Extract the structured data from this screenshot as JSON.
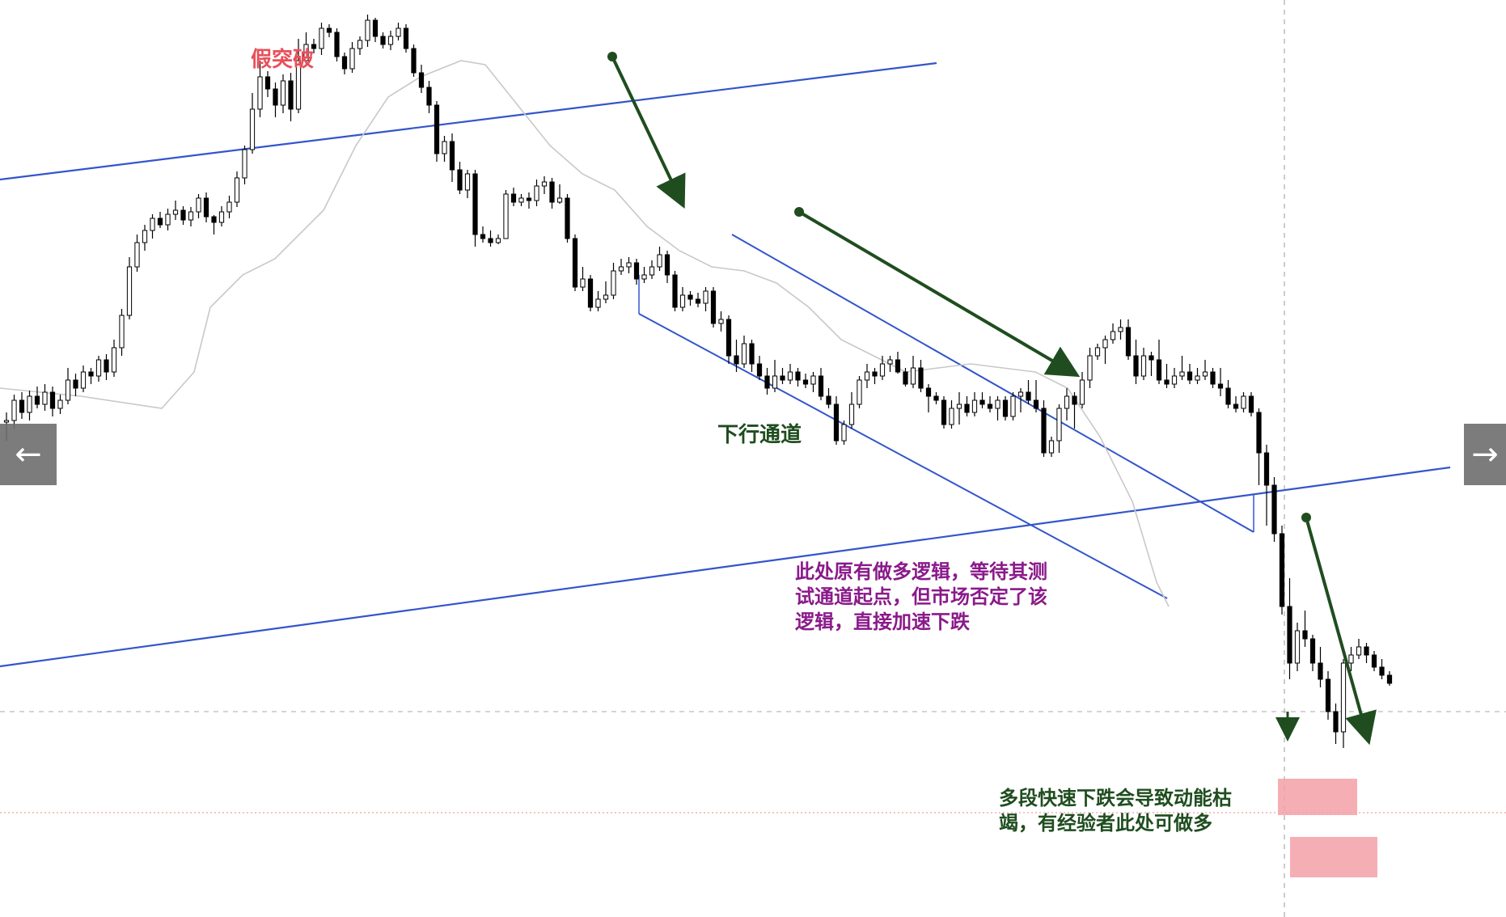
{
  "chart_data": {
    "type": "candlestick",
    "title": "",
    "xlabel": "",
    "ylabel": "",
    "grid": false,
    "colors": {
      "candle": "#000000",
      "moving_average": "#c8c8c8",
      "channel_line": "#3355cc",
      "arrow": "#1f4d1f",
      "highlight_zone": "#f4a0a8",
      "false_breakout_label": "#e8505b",
      "channel_label": "#1f4d1f",
      "logic_note": "#8a1a8a",
      "exhaustion_note": "#1f4d1f"
    },
    "candles": [
      [
        520,
        520,
        545,
        510
      ],
      [
        520,
        495,
        530,
        488
      ],
      [
        495,
        510,
        518,
        485
      ],
      [
        510,
        490,
        520,
        483
      ],
      [
        490,
        500,
        505,
        478
      ],
      [
        500,
        485,
        508,
        475
      ],
      [
        485,
        505,
        515,
        478
      ],
      [
        505,
        495,
        512,
        488
      ],
      [
        495,
        470,
        500,
        455
      ],
      [
        470,
        480,
        490,
        462
      ],
      [
        480,
        460,
        485,
        452
      ],
      [
        460,
        465,
        475,
        455
      ],
      [
        465,
        445,
        472,
        440
      ],
      [
        445,
        460,
        470,
        438
      ],
      [
        460,
        430,
        466,
        420
      ],
      [
        430,
        390,
        440,
        382
      ],
      [
        390,
        330,
        395,
        318
      ],
      [
        330,
        300,
        336,
        290
      ],
      [
        300,
        285,
        310,
        278
      ],
      [
        285,
        270,
        295,
        265
      ],
      [
        270,
        278,
        282,
        262
      ],
      [
        278,
        265,
        285,
        258
      ],
      [
        265,
        260,
        272,
        248
      ],
      [
        260,
        272,
        278,
        255
      ],
      [
        272,
        262,
        280,
        256
      ],
      [
        262,
        245,
        270,
        240
      ],
      [
        245,
        268,
        275,
        238
      ],
      [
        268,
        275,
        290,
        266
      ],
      [
        275,
        262,
        280,
        255
      ],
      [
        262,
        250,
        270,
        242
      ],
      [
        250,
        220,
        256,
        212
      ],
      [
        220,
        185,
        228,
        180
      ],
      [
        185,
        135,
        190,
        115
      ],
      [
        135,
        95,
        145,
        75
      ],
      [
        95,
        110,
        120,
        88
      ],
      [
        110,
        130,
        145,
        102
      ],
      [
        130,
        100,
        140,
        92
      ],
      [
        100,
        135,
        150,
        90
      ],
      [
        135,
        75,
        140,
        48
      ],
      [
        75,
        55,
        82,
        40
      ],
      [
        55,
        60,
        66,
        48
      ],
      [
        60,
        35,
        68,
        28
      ],
      [
        35,
        40,
        46,
        30
      ],
      [
        40,
        70,
        76,
        35
      ],
      [
        70,
        85,
        92,
        65
      ],
      [
        85,
        60,
        90,
        52
      ],
      [
        60,
        50,
        68,
        45
      ],
      [
        50,
        25,
        58,
        18
      ],
      [
        25,
        45,
        52,
        22
      ],
      [
        45,
        55,
        60,
        40
      ],
      [
        55,
        45,
        62,
        38
      ],
      [
        45,
        35,
        50,
        28
      ],
      [
        35,
        60,
        65,
        30
      ],
      [
        60,
        90,
        95,
        55
      ],
      [
        90,
        108,
        115,
        80
      ],
      [
        108,
        130,
        140,
        100
      ],
      [
        130,
        190,
        200,
        125
      ],
      [
        190,
        175,
        200,
        168
      ],
      [
        175,
        210,
        225,
        165
      ],
      [
        210,
        235,
        240,
        200
      ],
      [
        235,
        215,
        245,
        210
      ],
      [
        215,
        290,
        305,
        210
      ],
      [
        290,
        295,
        300,
        280
      ],
      [
        295,
        300,
        305,
        285
      ],
      [
        300,
        295,
        302,
        290
      ],
      [
        295,
        240,
        250,
        235
      ],
      [
        240,
        250,
        255,
        232
      ],
      [
        250,
        245,
        255,
        240
      ],
      [
        245,
        248,
        258,
        238
      ],
      [
        248,
        230,
        255,
        222
      ],
      [
        230,
        225,
        240,
        218
      ],
      [
        225,
        250,
        258,
        220
      ],
      [
        250,
        245,
        252,
        228
      ],
      [
        245,
        295,
        300,
        240
      ],
      [
        295,
        355,
        360,
        290
      ],
      [
        355,
        345,
        360,
        330
      ],
      [
        345,
        380,
        385,
        340
      ],
      [
        380,
        370,
        385,
        360
      ],
      [
        370,
        365,
        375,
        348
      ],
      [
        365,
        335,
        370,
        325
      ],
      [
        335,
        330,
        340,
        320
      ],
      [
        330,
        325,
        338,
        318
      ],
      [
        325,
        345,
        352,
        320
      ],
      [
        345,
        340,
        350,
        330
      ],
      [
        340,
        330,
        345,
        322
      ],
      [
        330,
        315,
        335,
        305
      ],
      [
        315,
        340,
        350,
        310
      ],
      [
        340,
        380,
        385,
        335
      ],
      [
        380,
        365,
        385,
        355
      ],
      [
        365,
        370,
        378,
        360
      ],
      [
        370,
        375,
        380,
        362
      ],
      [
        375,
        360,
        385,
        355
      ],
      [
        360,
        400,
        405,
        355
      ],
      [
        400,
        395,
        410,
        385
      ],
      [
        395,
        440,
        450,
        390
      ],
      [
        440,
        450,
        460,
        420
      ],
      [
        450,
        425,
        455,
        415
      ],
      [
        425,
        450,
        460,
        420
      ],
      [
        450,
        465,
        470,
        440
      ],
      [
        465,
        480,
        488,
        455
      ],
      [
        480,
        465,
        485,
        445
      ],
      [
        465,
        470,
        475,
        455
      ],
      [
        470,
        460,
        475,
        450
      ],
      [
        460,
        470,
        478,
        455
      ],
      [
        470,
        475,
        480,
        462
      ],
      [
        475,
        465,
        485,
        460
      ],
      [
        465,
        490,
        495,
        455
      ],
      [
        490,
        500,
        505,
        480
      ],
      [
        500,
        545,
        550,
        490
      ],
      [
        545,
        525,
        550,
        520
      ],
      [
        525,
        500,
        530,
        485
      ],
      [
        500,
        470,
        505,
        465
      ],
      [
        470,
        460,
        480,
        450
      ],
      [
        460,
        465,
        475,
        455
      ],
      [
        465,
        450,
        470,
        440
      ],
      [
        450,
        445,
        460,
        440
      ],
      [
        445,
        460,
        462,
        435
      ],
      [
        460,
        475,
        478,
        455
      ],
      [
        475,
        455,
        480,
        440
      ],
      [
        455,
        480,
        485,
        445
      ],
      [
        480,
        490,
        510,
        475
      ],
      [
        490,
        495,
        500,
        485
      ],
      [
        495,
        525,
        530,
        490
      ],
      [
        525,
        505,
        530,
        495
      ],
      [
        505,
        500,
        525,
        485
      ],
      [
        500,
        510,
        515,
        490
      ],
      [
        510,
        495,
        515,
        485
      ],
      [
        495,
        500,
        505,
        485
      ],
      [
        500,
        505,
        510,
        490
      ],
      [
        505,
        495,
        520,
        490
      ],
      [
        495,
        515,
        520,
        490
      ],
      [
        515,
        490,
        520,
        485
      ],
      [
        490,
        485,
        510,
        480
      ],
      [
        485,
        495,
        500,
        470
      ],
      [
        495,
        505,
        510,
        470
      ],
      [
        505,
        560,
        565,
        495
      ],
      [
        560,
        545,
        565,
        540
      ],
      [
        545,
        505,
        560,
        500
      ],
      [
        505,
        490,
        520,
        480
      ],
      [
        490,
        500,
        530,
        485
      ],
      [
        500,
        470,
        505,
        460
      ],
      [
        470,
        440,
        480,
        430
      ],
      [
        440,
        430,
        445,
        425
      ],
      [
        430,
        420,
        450,
        415
      ],
      [
        420,
        410,
        425,
        400
      ],
      [
        410,
        405,
        420,
        395
      ],
      [
        405,
        440,
        445,
        395
      ],
      [
        440,
        465,
        475,
        420
      ],
      [
        465,
        440,
        470,
        430
      ],
      [
        440,
        445,
        465,
        435
      ],
      [
        445,
        470,
        475,
        420
      ],
      [
        470,
        475,
        480,
        450
      ],
      [
        475,
        465,
        480,
        455
      ],
      [
        465,
        460,
        470,
        440
      ],
      [
        460,
        470,
        475,
        450
      ],
      [
        470,
        465,
        475,
        455
      ],
      [
        465,
        460,
        470,
        445
      ],
      [
        460,
        475,
        480,
        455
      ],
      [
        475,
        480,
        490,
        455
      ],
      [
        480,
        500,
        505,
        470
      ],
      [
        500,
        505,
        510,
        490
      ],
      [
        505,
        490,
        510,
        485
      ],
      [
        490,
        510,
        515,
        485
      ],
      [
        510,
        560,
        600,
        505
      ],
      [
        560,
        600,
        650,
        550
      ],
      [
        600,
        660,
        670,
        590
      ],
      [
        660,
        750,
        760,
        650
      ],
      [
        750,
        820,
        840,
        715
      ],
      [
        820,
        780,
        830,
        770
      ],
      [
        780,
        790,
        800,
        755
      ],
      [
        790,
        820,
        830,
        785
      ],
      [
        820,
        840,
        850,
        800
      ],
      [
        840,
        880,
        890,
        830
      ],
      [
        880,
        905,
        920,
        870
      ],
      [
        905,
        820,
        925,
        815
      ],
      [
        820,
        810,
        830,
        800
      ],
      [
        810,
        800,
        815,
        790
      ],
      [
        800,
        810,
        820,
        795
      ],
      [
        810,
        825,
        830,
        805
      ],
      [
        825,
        835,
        840,
        815
      ],
      [
        835,
        845,
        848,
        830
      ]
    ],
    "moving_average": [
      [
        0,
        480
      ],
      [
        100,
        490
      ],
      [
        200,
        505
      ],
      [
        240,
        460
      ],
      [
        260,
        380
      ],
      [
        300,
        340
      ],
      [
        340,
        320
      ],
      [
        400,
        260
      ],
      [
        440,
        180
      ],
      [
        480,
        120
      ],
      [
        520,
        95
      ],
      [
        570,
        75
      ],
      [
        600,
        80
      ],
      [
        640,
        130
      ],
      [
        680,
        180
      ],
      [
        720,
        215
      ],
      [
        760,
        235
      ],
      [
        800,
        280
      ],
      [
        840,
        310
      ],
      [
        880,
        330
      ],
      [
        920,
        335
      ],
      [
        960,
        350
      ],
      [
        1000,
        380
      ],
      [
        1040,
        420
      ],
      [
        1080,
        440
      ],
      [
        1120,
        460
      ],
      [
        1160,
        455
      ],
      [
        1200,
        450
      ],
      [
        1240,
        455
      ],
      [
        1280,
        460
      ],
      [
        1320,
        480
      ],
      [
        1360,
        540
      ],
      [
        1400,
        620
      ],
      [
        1430,
        720
      ],
      [
        1445,
        750
      ]
    ]
  },
  "annotations": {
    "false_breakout": "假突破",
    "down_channel": "下行通道",
    "logic_note": "此处原有做多逻辑，等待其测\n试通道起点，但市场否定了该\n逻辑，直接加速下跌",
    "exhaustion_note": "多段快速下跌会导致动能枯\n竭，有经验者此处可做多"
  },
  "nav": {
    "prev_icon": "arrow-left-icon",
    "next_icon": "arrow-right-icon",
    "prev_glyph": "←",
    "next_glyph": "→"
  }
}
